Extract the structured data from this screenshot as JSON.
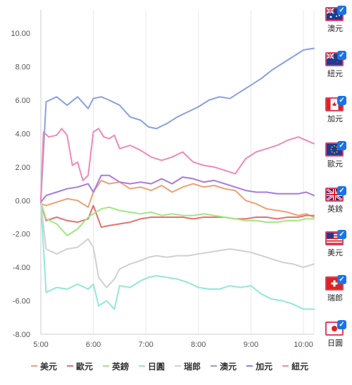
{
  "chart_data": {
    "type": "line",
    "title": "",
    "xlabel": "",
    "ylabel": "",
    "x_ticks": [
      "5:00",
      "6:00",
      "7:00",
      "8:00",
      "9:00",
      "10:00"
    ],
    "y_ticks": [
      "10.00",
      "8.00",
      "6.00",
      "4.00",
      "2.00",
      "0.00",
      "-2.00",
      "-4.00",
      "-6.00",
      "-8.00"
    ],
    "xlim": [
      5.0,
      10.2
    ],
    "ylim": [
      -8.0,
      11.4
    ],
    "grid": "vertical",
    "legend_position": "bottom",
    "series": [
      {
        "name": "美元",
        "color": "#f0a070",
        "x": [
          5.0,
          5.1,
          5.3,
          5.5,
          5.7,
          5.9,
          6.0,
          6.15,
          6.3,
          6.5,
          6.7,
          6.9,
          7.1,
          7.3,
          7.5,
          7.7,
          7.9,
          8.1,
          8.3,
          8.5,
          8.7,
          8.9,
          9.1,
          9.3,
          9.5,
          9.7,
          9.9,
          10.05,
          10.2
        ],
        "y": [
          -0.2,
          -0.3,
          -0.1,
          0.1,
          0.0,
          -0.4,
          0.5,
          1.2,
          1.0,
          1.1,
          0.7,
          0.8,
          0.6,
          0.9,
          0.5,
          0.8,
          1.0,
          0.8,
          0.9,
          0.7,
          0.6,
          0.0,
          -0.2,
          -0.5,
          -0.6,
          -0.7,
          -0.9,
          -0.8,
          -1.0
        ]
      },
      {
        "name": "歐元",
        "color": "#e87070",
        "x": [
          5.0,
          5.1,
          5.3,
          5.5,
          5.7,
          5.9,
          6.0,
          6.15,
          6.3,
          6.5,
          6.7,
          6.9,
          7.1,
          7.3,
          7.5,
          7.7,
          7.9,
          8.1,
          8.3,
          8.5,
          8.7,
          8.9,
          9.1,
          9.3,
          9.5,
          9.7,
          9.9,
          10.05,
          10.2
        ],
        "y": [
          -0.2,
          -1.2,
          -1.0,
          -1.2,
          -1.3,
          -1.1,
          -0.3,
          -1.6,
          -1.5,
          -1.4,
          -1.3,
          -1.1,
          -1.0,
          -1.0,
          -1.0,
          -1.0,
          -1.1,
          -1.0,
          -1.0,
          -1.0,
          -1.1,
          -1.1,
          -1.0,
          -1.0,
          -1.1,
          -1.0,
          -1.0,
          -0.9,
          -0.9
        ]
      },
      {
        "name": "英鎊",
        "color": "#a0e880",
        "x": [
          5.0,
          5.1,
          5.3,
          5.5,
          5.7,
          5.9,
          6.0,
          6.15,
          6.3,
          6.5,
          6.7,
          6.9,
          7.1,
          7.3,
          7.5,
          7.7,
          7.9,
          8.1,
          8.3,
          8.5,
          8.7,
          8.9,
          9.1,
          9.3,
          9.5,
          9.7,
          9.9,
          10.05,
          10.2
        ],
        "y": [
          -0.1,
          -1.1,
          -1.4,
          -2.1,
          -1.7,
          -1.0,
          -0.8,
          -0.5,
          -0.4,
          -0.6,
          -0.7,
          -0.8,
          -0.7,
          -0.9,
          -0.8,
          -0.9,
          -0.9,
          -0.8,
          -0.9,
          -1.0,
          -1.1,
          -1.2,
          -1.2,
          -1.3,
          -1.3,
          -1.2,
          -1.2,
          -1.1,
          -1.1
        ]
      },
      {
        "name": "日圓",
        "color": "#90e8d8",
        "x": [
          5.0,
          5.1,
          5.3,
          5.5,
          5.7,
          5.9,
          6.0,
          6.1,
          6.25,
          6.4,
          6.5,
          6.7,
          6.9,
          7.05,
          7.2,
          7.4,
          7.6,
          7.8,
          8.0,
          8.2,
          8.4,
          8.6,
          8.8,
          9.0,
          9.2,
          9.4,
          9.6,
          9.8,
          10.0,
          10.2
        ],
        "y": [
          -0.1,
          -5.5,
          -5.2,
          -5.3,
          -5.0,
          -5.3,
          -5.0,
          -6.3,
          -6.0,
          -6.5,
          -5.1,
          -5.2,
          -4.8,
          -4.6,
          -4.5,
          -4.6,
          -4.7,
          -4.9,
          -5.2,
          -5.3,
          -5.3,
          -5.1,
          -5.2,
          -5.1,
          -5.6,
          -5.9,
          -6.0,
          -6.2,
          -6.5,
          -6.5
        ]
      },
      {
        "name": "瑞郎",
        "color": "#d0d0d0",
        "x": [
          5.0,
          5.1,
          5.3,
          5.5,
          5.7,
          5.9,
          6.0,
          6.1,
          6.25,
          6.4,
          6.5,
          6.7,
          6.9,
          7.05,
          7.2,
          7.4,
          7.6,
          7.8,
          8.0,
          8.2,
          8.4,
          8.6,
          8.8,
          9.0,
          9.2,
          9.4,
          9.6,
          9.8,
          10.0,
          10.2
        ],
        "y": [
          -0.1,
          -2.9,
          -3.2,
          -2.9,
          -2.8,
          -2.3,
          -2.8,
          -4.6,
          -5.2,
          -4.7,
          -4.1,
          -3.8,
          -3.6,
          -3.4,
          -3.3,
          -3.4,
          -3.3,
          -3.3,
          -3.2,
          -3.1,
          -3.0,
          -2.9,
          -3.0,
          -3.1,
          -3.3,
          -3.5,
          -3.7,
          -3.8,
          -4.0,
          -3.8
        ]
      },
      {
        "name": "澳元",
        "color": "#8aa0e0",
        "x": [
          5.0,
          5.1,
          5.3,
          5.5,
          5.7,
          5.9,
          6.0,
          6.15,
          6.3,
          6.5,
          6.7,
          6.9,
          7.05,
          7.2,
          7.4,
          7.6,
          7.8,
          8.0,
          8.2,
          8.4,
          8.6,
          8.8,
          9.0,
          9.2,
          9.4,
          9.6,
          9.8,
          10.0,
          10.2
        ],
        "y": [
          0.0,
          5.9,
          6.2,
          5.7,
          6.2,
          5.5,
          6.1,
          6.2,
          6.0,
          5.7,
          5.0,
          4.8,
          4.4,
          4.3,
          4.6,
          5.0,
          5.3,
          5.6,
          6.0,
          6.2,
          6.1,
          6.5,
          6.9,
          7.3,
          7.8,
          8.2,
          8.6,
          9.0,
          9.1
        ]
      },
      {
        "name": "加元",
        "color": "#a878e0",
        "x": [
          5.0,
          5.1,
          5.3,
          5.5,
          5.7,
          5.9,
          6.0,
          6.15,
          6.3,
          6.5,
          6.7,
          6.9,
          7.1,
          7.3,
          7.5,
          7.7,
          7.9,
          8.1,
          8.3,
          8.5,
          8.7,
          8.9,
          9.1,
          9.3,
          9.5,
          9.7,
          9.9,
          10.05,
          10.2
        ],
        "y": [
          -0.1,
          0.3,
          0.5,
          0.7,
          0.8,
          1.0,
          0.5,
          1.5,
          1.5,
          1.1,
          1.0,
          1.1,
          1.0,
          1.3,
          1.0,
          1.4,
          1.3,
          1.1,
          1.2,
          1.0,
          0.8,
          0.6,
          0.5,
          0.5,
          0.4,
          0.4,
          0.4,
          0.5,
          0.3
        ]
      },
      {
        "name": "紐元",
        "color": "#f088b8",
        "x": [
          5.0,
          5.05,
          5.15,
          5.3,
          5.4,
          5.5,
          5.6,
          5.7,
          5.8,
          5.9,
          6.0,
          6.1,
          6.2,
          6.3,
          6.4,
          6.5,
          6.7,
          6.9,
          7.1,
          7.3,
          7.5,
          7.7,
          7.9,
          8.1,
          8.3,
          8.5,
          8.7,
          8.9,
          9.1,
          9.3,
          9.5,
          9.7,
          9.9,
          10.05,
          10.2
        ],
        "y": [
          0.0,
          4.1,
          3.8,
          3.9,
          4.3,
          3.9,
          2.1,
          2.3,
          1.2,
          1.5,
          4.1,
          4.3,
          3.8,
          3.7,
          3.9,
          3.1,
          3.3,
          3.0,
          2.6,
          2.4,
          2.6,
          2.9,
          2.3,
          2.1,
          2.0,
          1.8,
          1.6,
          2.5,
          2.9,
          3.1,
          3.3,
          3.6,
          3.8,
          3.6,
          3.4
        ]
      }
    ]
  },
  "sidebar": {
    "items": [
      {
        "label": "澳元",
        "flag": "au-flag-icon"
      },
      {
        "label": "紐元",
        "flag": "nz-flag-icon"
      },
      {
        "label": "加元",
        "flag": "ca-flag-icon"
      },
      {
        "label": "歐元",
        "flag": "eu-flag-icon"
      },
      {
        "label": "英鎊",
        "flag": "uk-flag-icon"
      },
      {
        "label": "美元",
        "flag": "us-flag-icon"
      },
      {
        "label": "瑞郎",
        "flag": "ch-flag-icon"
      },
      {
        "label": "日圓",
        "flag": "jp-flag-icon"
      }
    ]
  }
}
